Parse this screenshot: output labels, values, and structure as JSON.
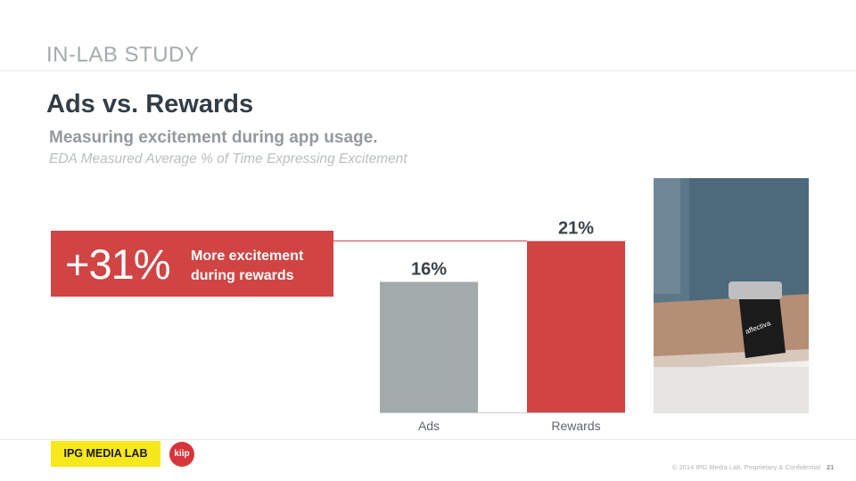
{
  "header": {
    "section": "IN-LAB STUDY",
    "title": "Ads vs. Rewards",
    "subtitle": "Measuring excitement during app usage.",
    "caption": "EDA Measured Average % of Time Expressing Excitement"
  },
  "callout": {
    "value": "+31%",
    "text": "More excitement during rewards"
  },
  "chart_data": {
    "type": "bar",
    "categories": [
      "Ads",
      "Rewards"
    ],
    "values": [
      16,
      21
    ],
    "value_labels": [
      "16%",
      "21%"
    ],
    "colors": [
      "#a3abaa",
      "#d04444"
    ],
    "ylim": [
      0,
      25
    ],
    "grid": false
  },
  "photo": {
    "wristband_text": "affectiva"
  },
  "footer": {
    "ipg_logo": "IPG MEDIA LAB",
    "kiip_logo": "kiip",
    "copyright": "© 2014 IPG Media Lab. Proprietary & Confidential",
    "page": "21"
  }
}
